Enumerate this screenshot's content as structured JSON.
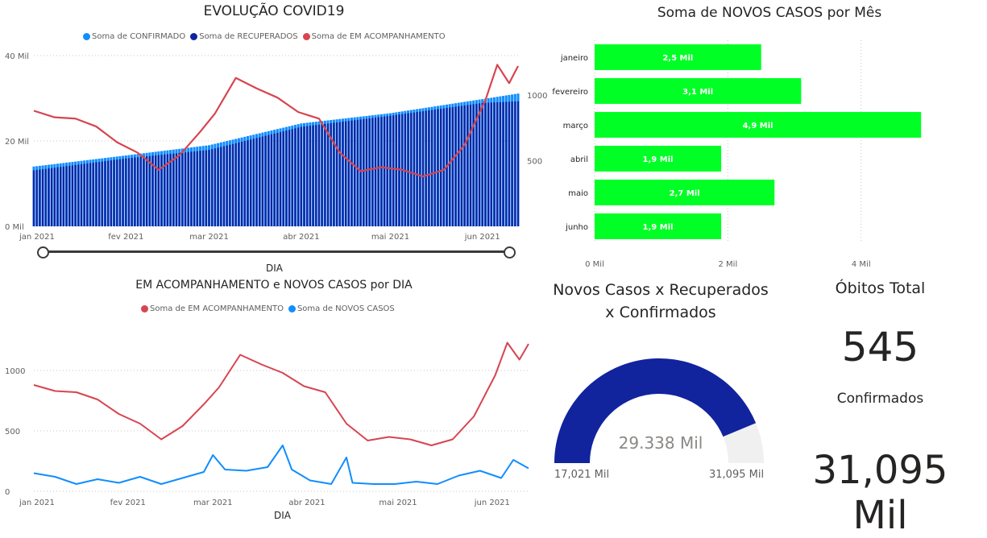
{
  "colors": {
    "confirmado": "#118DFF",
    "recuperados": "#12239E",
    "acompanhamento": "#D64550",
    "novos_casos": "#118DFF",
    "bars": "#00FF25",
    "gauge_fill": "#12239E",
    "gauge_track": "#F0F0F0",
    "grid": "#C8C6C4"
  },
  "panel_evolucao": {
    "title": "EVOLUÇÃO COVID19",
    "legend": [
      {
        "label": "Soma de CONFIRMADO",
        "color": "#118DFF"
      },
      {
        "label": "Soma de RECUPERADOS",
        "color": "#12239E"
      },
      {
        "label": "Soma de EM ACOMPANHAMENTO",
        "color": "#D64550"
      }
    ],
    "xlabel": "DIA",
    "slider": {
      "start": "jan 2021",
      "end": "jun 2021"
    }
  },
  "panel_acompanhamento": {
    "title": "EM ACOMPANHAMENTO e NOVOS CASOS por DIA",
    "legend": [
      {
        "label": "Soma de EM ACOMPANHAMENTO",
        "color": "#D64550"
      },
      {
        "label": "Soma de NOVOS CASOS",
        "color": "#118DFF"
      }
    ],
    "xlabel": "DIA"
  },
  "panel_mes": {
    "title": "Soma de NOVOS CASOS por Mês"
  },
  "gauge": {
    "title_line1": "Novos Casos x Recuperados",
    "title_line2": "x Confirmados",
    "value_label": "29.338 Mil",
    "min_label": "17,021 Mil",
    "max_label": "31,095 Mil"
  },
  "cards": {
    "obitos_title": "Óbitos Total",
    "obitos_value": "545",
    "confirmados_title": "Confirmados",
    "confirmados_value": "31,095 Mil"
  },
  "chart_data": [
    {
      "type": "bar+line",
      "title": "EVOLUÇÃO COVID19",
      "xlabel": "DIA",
      "x_ticks": [
        "jan 2021",
        "fev 2021",
        "mar 2021",
        "abr 2021",
        "mai 2021",
        "jun 2021"
      ],
      "y_left_ticks": [
        "0 Mil",
        "20 Mil",
        "40 Mil"
      ],
      "y_left_lim": [
        0,
        40
      ],
      "y_right_ticks": [
        "500",
        "1000"
      ],
      "y_right_lim": [
        0,
        1300
      ],
      "series": [
        {
          "name": "Soma de CONFIRMADO",
          "axis": "left",
          "unit": "Mil",
          "x": [
            "2021-01-01",
            "2021-02-01",
            "2021-03-01",
            "2021-04-01",
            "2021-05-01",
            "2021-06-01",
            "2021-06-13"
          ],
          "values": [
            14.0,
            16.6,
            19.0,
            24.1,
            26.5,
            29.8,
            31.1
          ]
        },
        {
          "name": "Soma de RECUPERADOS",
          "axis": "left",
          "unit": "Mil",
          "x": [
            "2021-01-01",
            "2021-02-01",
            "2021-03-01",
            "2021-04-01",
            "2021-05-01",
            "2021-06-01",
            "2021-06-13"
          ],
          "values": [
            13.1,
            15.9,
            17.9,
            23.3,
            25.9,
            28.9,
            29.3
          ]
        },
        {
          "name": "Soma de EM ACOMPANHAMENTO",
          "axis": "right",
          "x": [
            "2021-01-01",
            "2021-01-08",
            "2021-01-15",
            "2021-01-22",
            "2021-01-29",
            "2021-02-05",
            "2021-02-12",
            "2021-02-19",
            "2021-02-26",
            "2021-03-03",
            "2021-03-10",
            "2021-03-17",
            "2021-03-24",
            "2021-03-31",
            "2021-04-07",
            "2021-04-14",
            "2021-04-21",
            "2021-04-28",
            "2021-05-05",
            "2021-05-12",
            "2021-05-19",
            "2021-05-26",
            "2021-06-02",
            "2021-06-06",
            "2021-06-10",
            "2021-06-13"
          ],
          "values": [
            880,
            830,
            820,
            760,
            640,
            560,
            430,
            540,
            720,
            860,
            1130,
            1050,
            980,
            870,
            820,
            560,
            420,
            450,
            430,
            380,
            430,
            620,
            960,
            1230,
            1090,
            1220
          ]
        }
      ]
    },
    {
      "type": "line",
      "title": "EM ACOMPANHAMENTO e NOVOS CASOS por DIA",
      "xlabel": "DIA",
      "x_ticks": [
        "jan 2021",
        "fev 2021",
        "mar 2021",
        "abr 2021",
        "mai 2021",
        "jun 2021"
      ],
      "y_ticks": [
        "0",
        "500",
        "1000"
      ],
      "ylim": [
        0,
        1300
      ],
      "series": [
        {
          "name": "Soma de EM ACOMPANHAMENTO",
          "x": [
            "2021-01-01",
            "2021-01-08",
            "2021-01-15",
            "2021-01-22",
            "2021-01-29",
            "2021-02-05",
            "2021-02-12",
            "2021-02-19",
            "2021-02-26",
            "2021-03-03",
            "2021-03-10",
            "2021-03-17",
            "2021-03-24",
            "2021-03-31",
            "2021-04-07",
            "2021-04-14",
            "2021-04-21",
            "2021-04-28",
            "2021-05-05",
            "2021-05-12",
            "2021-05-19",
            "2021-05-26",
            "2021-06-02",
            "2021-06-06",
            "2021-06-10",
            "2021-06-13"
          ],
          "values": [
            880,
            830,
            820,
            760,
            640,
            560,
            430,
            540,
            720,
            860,
            1130,
            1050,
            980,
            870,
            820,
            560,
            420,
            450,
            430,
            380,
            430,
            620,
            960,
            1230,
            1090,
            1220
          ]
        },
        {
          "name": "Soma de NOVOS CASOS",
          "x": [
            "2021-01-01",
            "2021-01-08",
            "2021-01-15",
            "2021-01-22",
            "2021-01-29",
            "2021-02-05",
            "2021-02-12",
            "2021-02-19",
            "2021-02-26",
            "2021-03-01",
            "2021-03-05",
            "2021-03-12",
            "2021-03-19",
            "2021-03-24",
            "2021-03-27",
            "2021-04-02",
            "2021-04-09",
            "2021-04-14",
            "2021-04-16",
            "2021-04-23",
            "2021-04-30",
            "2021-05-07",
            "2021-05-14",
            "2021-05-21",
            "2021-05-28",
            "2021-06-04",
            "2021-06-08",
            "2021-06-13"
          ],
          "values": [
            150,
            120,
            60,
            100,
            70,
            120,
            60,
            110,
            160,
            300,
            180,
            170,
            200,
            380,
            180,
            90,
            60,
            280,
            70,
            60,
            60,
            80,
            60,
            130,
            170,
            110,
            260,
            190
          ]
        }
      ]
    },
    {
      "type": "bar",
      "orientation": "horizontal",
      "title": "Soma de NOVOS CASOS por Mês",
      "categories": [
        "janeiro",
        "fevereiro",
        "março",
        "abril",
        "maio",
        "junho"
      ],
      "values": [
        2.5,
        3.1,
        4.9,
        1.9,
        2.7,
        1.9
      ],
      "data_labels": [
        "2,5 Mil",
        "3,1 Mil",
        "4,9 Mil",
        "1,9 Mil",
        "2,7 Mil",
        "1,9 Mil"
      ],
      "unit": "Mil",
      "x_ticks": [
        "0 Mil",
        "2 Mil",
        "4 Mil"
      ],
      "xlim": [
        0,
        5.2
      ]
    },
    {
      "type": "gauge",
      "title": "Novos Casos x Recuperados x Confirmados",
      "min": 17.021,
      "max": 31.095,
      "value": 29.338,
      "unit": "Mil"
    }
  ]
}
